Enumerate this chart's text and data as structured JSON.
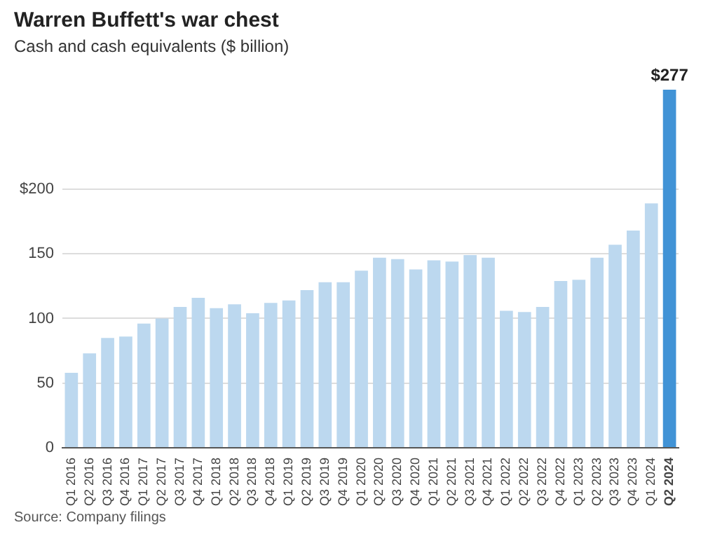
{
  "chart_data": {
    "type": "bar",
    "title": "Warren Buffett's war chest",
    "subtitle": "Cash and cash equivalents ($ billion)",
    "categories": [
      "Q1 2016",
      "Q2 2016",
      "Q3 2016",
      "Q4 2016",
      "Q1 2017",
      "Q2 2017",
      "Q3 2017",
      "Q4 2017",
      "Q1 2018",
      "Q2 2018",
      "Q3 2018",
      "Q4 2018",
      "Q1 2019",
      "Q2 2019",
      "Q3 2019",
      "Q4 2019",
      "Q1 2020",
      "Q2 2020",
      "Q3 2020",
      "Q4 2020",
      "Q1 2021",
      "Q2 2021",
      "Q3 2021",
      "Q4 2021",
      "Q1 2022",
      "Q2 2022",
      "Q3 2022",
      "Q4 2022",
      "Q1 2023",
      "Q2 2023",
      "Q3 2023",
      "Q4 2023",
      "Q1 2024",
      "Q2 2024"
    ],
    "values": [
      58,
      73,
      85,
      86,
      96,
      100,
      109,
      116,
      108,
      111,
      104,
      112,
      114,
      122,
      128,
      128,
      137,
      147,
      146,
      138,
      145,
      144,
      149,
      147,
      106,
      105,
      109,
      129,
      130,
      147,
      157,
      168,
      189,
      277
    ],
    "colors": [
      "#bcd8ef",
      "#bcd8ef",
      "#bcd8ef",
      "#bcd8ef",
      "#bcd8ef",
      "#bcd8ef",
      "#bcd8ef",
      "#bcd8ef",
      "#bcd8ef",
      "#bcd8ef",
      "#bcd8ef",
      "#bcd8ef",
      "#bcd8ef",
      "#bcd8ef",
      "#bcd8ef",
      "#bcd8ef",
      "#bcd8ef",
      "#bcd8ef",
      "#bcd8ef",
      "#bcd8ef",
      "#bcd8ef",
      "#bcd8ef",
      "#bcd8ef",
      "#bcd8ef",
      "#bcd8ef",
      "#bcd8ef",
      "#bcd8ef",
      "#bcd8ef",
      "#bcd8ef",
      "#bcd8ef",
      "#bcd8ef",
      "#bcd8ef",
      "#bcd8ef",
      "#4193d6"
    ],
    "value_labels": [
      null,
      null,
      null,
      null,
      null,
      null,
      null,
      null,
      null,
      null,
      null,
      null,
      null,
      null,
      null,
      null,
      null,
      null,
      null,
      null,
      null,
      null,
      null,
      null,
      null,
      null,
      null,
      null,
      null,
      null,
      null,
      null,
      null,
      "$277"
    ],
    "ylim": [
      0,
      277
    ],
    "yticks": [
      0,
      50,
      100,
      150,
      {
        "value": 200,
        "label": "$200"
      }
    ],
    "grid": "y",
    "legend": false,
    "annotations": [
      "Source: Company filings"
    ]
  }
}
